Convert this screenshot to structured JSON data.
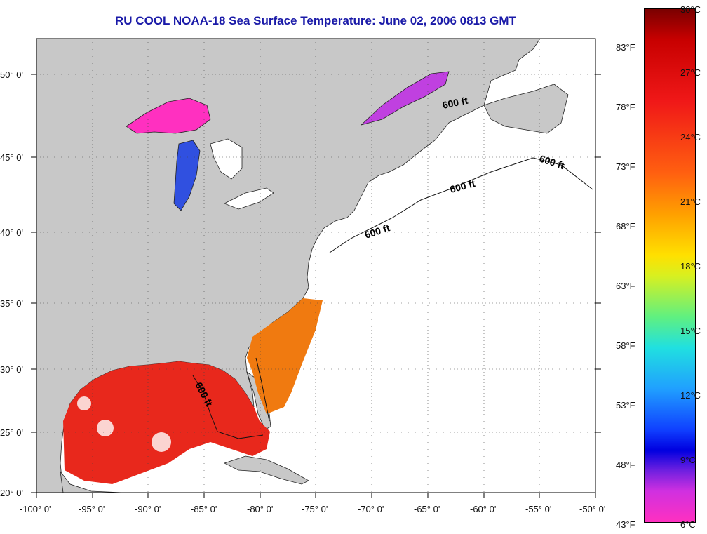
{
  "title": "RU COOL  NOAA-18  Sea Surface Temperature:  June 02, 2006 0813 GMT",
  "lon_labels": [
    "-100° 0'",
    "-95° 0'",
    "-90° 0'",
    "-85° 0'",
    "-80° 0'",
    "-75° 0'",
    "-70° 0'",
    "-65° 0'",
    "-60° 0'",
    "-55° 0'",
    "-50° 0'"
  ],
  "lat_labels": [
    "50° 0'",
    "45° 0'",
    "40° 0'",
    "35° 0'",
    "30° 0'",
    "25° 0'",
    "20° 0'"
  ],
  "isobath_labels": [
    "600 ft",
    "600 ft",
    "600 ft",
    "600 ft",
    "600 ft"
  ],
  "colorbar": {
    "celsius": [
      "30°C",
      "27°C",
      "24°C",
      "21°C",
      "18°C",
      "15°C",
      "12°C",
      "9°C",
      "6°C"
    ],
    "fahrenheit": [
      "83°F",
      "78°F",
      "73°F",
      "68°F",
      "63°F",
      "58°F",
      "53°F",
      "48°F",
      "43°F"
    ]
  },
  "colors": {
    "land": "#c8c8c8",
    "ocean_nodata": "#ffffff",
    "warm": "#e8281c",
    "gulf_stream": "#f07a10",
    "cold": "#ff30c0",
    "title": "#1a1aa8"
  }
}
